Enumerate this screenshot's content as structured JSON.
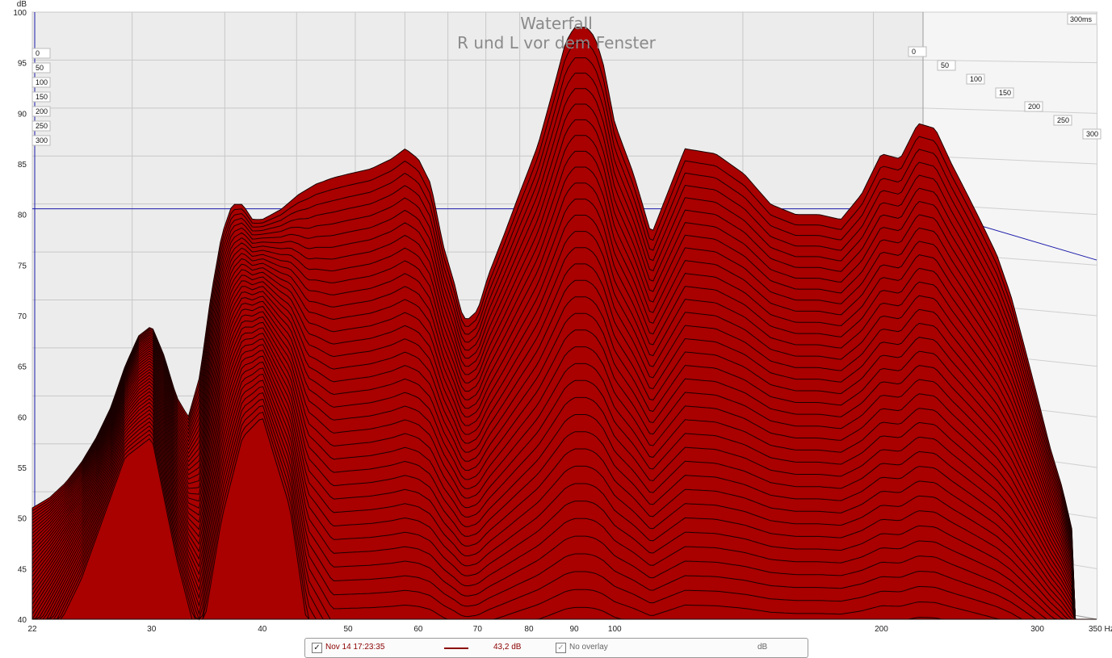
{
  "chart_data": {
    "type": "area",
    "title": "Waterfall",
    "subtitle": "R und L vor dem Fenster",
    "ylabel": "dB",
    "xunit": "Hz",
    "xscale": "log",
    "xlim": [
      22,
      350
    ],
    "ylim": [
      40,
      100
    ],
    "x_ticks": [
      22,
      30,
      40,
      50,
      60,
      70,
      80,
      90,
      100,
      200,
      300,
      350
    ],
    "x_tick_labels": [
      "22",
      "30",
      "40",
      "50",
      "60",
      "70",
      "80",
      "90",
      "100",
      "200",
      "300",
      "350 Hz"
    ],
    "y_ticks": [
      40,
      45,
      50,
      55,
      60,
      65,
      70,
      75,
      80,
      85,
      90,
      95,
      100
    ],
    "time_axis": {
      "unit": "ms",
      "max": 300,
      "label": "300ms",
      "ticks": [
        0,
        50,
        100,
        150,
        200,
        250,
        300
      ]
    },
    "marker_level_db": 79.5,
    "fill_color": "#a90000",
    "edge_color": "#1a0000",
    "slice_count": 40,
    "front_slice": {
      "time_ms": 0,
      "x": [
        22,
        23,
        24,
        25,
        26,
        27,
        28,
        29,
        30,
        31,
        32,
        33,
        34,
        35,
        36,
        37,
        38,
        39,
        40,
        42,
        44,
        46,
        48,
        50,
        53,
        56,
        58,
        60,
        62,
        64,
        66,
        67,
        68,
        70,
        72,
        75,
        78,
        80,
        82,
        85,
        88,
        90,
        93,
        95,
        97,
        100,
        105,
        110,
        120,
        130,
        140,
        150,
        160,
        170,
        180,
        190,
        200,
        210,
        220,
        230,
        240,
        250,
        260,
        270,
        280,
        290,
        300,
        310,
        320,
        330
      ],
      "y": [
        51,
        52,
        53.5,
        55.5,
        58,
        61,
        65,
        68,
        69,
        66,
        62,
        60,
        64,
        72,
        78,
        81,
        81,
        79.5,
        79.5,
        80.5,
        82,
        83,
        83.6,
        84,
        84.5,
        85.5,
        86.5,
        85.5,
        83,
        77,
        73,
        70.5,
        69.5,
        70.5,
        74,
        78,
        82,
        84.5,
        87,
        92,
        97,
        98.5,
        98.5,
        97.5,
        95,
        89,
        84,
        78,
        86.5,
        86,
        84,
        81,
        80,
        80,
        79.5,
        82,
        86,
        85.5,
        89,
        88.5,
        85,
        82,
        79,
        76,
        72,
        67,
        62,
        57,
        53,
        48
      ]
    },
    "last_slice": {
      "time_ms": 300,
      "x": [
        22,
        25,
        28,
        30,
        32,
        34,
        36,
        38,
        40,
        43,
        45,
        48
      ],
      "y": [
        40,
        50,
        62,
        64,
        52,
        43,
        56,
        64,
        66,
        57,
        45,
        40
      ]
    }
  },
  "legend": {
    "measurement_label": "Nov 14 17:23:35",
    "value": "43,2 dB",
    "overlay_label": "No overlay",
    "unit": "dB",
    "check_mark": "✓"
  }
}
